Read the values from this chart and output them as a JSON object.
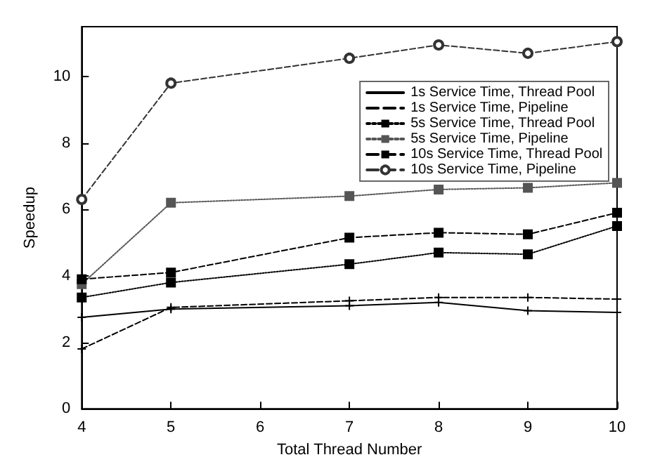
{
  "chart_data": {
    "type": "line",
    "xlabel": "Total Thread Number",
    "ylabel": "Speedup",
    "xlim": [
      4,
      10
    ],
    "xticks": [
      4,
      5,
      6,
      7,
      8,
      9,
      10
    ],
    "ylim": [
      0,
      11.5
    ],
    "yticks": [
      0,
      2,
      4,
      6,
      8,
      10
    ],
    "grid": false,
    "legend": "top right",
    "series": [
      {
        "name": "1s Service Time, Thread Pool",
        "color": "#000000",
        "marker": "cross",
        "line_style": "solid",
        "x": [
          4,
          5,
          7,
          8,
          9,
          10
        ],
        "values": [
          2.75,
          3.0,
          3.1,
          3.2,
          2.95,
          2.9
        ]
      },
      {
        "name": "1s Service Time, Pipeline",
        "color": "#000000",
        "marker": "cross",
        "line_style": "dashed",
        "x": [
          4,
          5,
          7,
          8,
          9,
          10
        ],
        "values": [
          1.8,
          3.05,
          3.25,
          3.35,
          3.35,
          3.3
        ]
      },
      {
        "name": "5s Service Time, Thread Pool",
        "color": "#000000",
        "marker": "square",
        "line_style": "dotted",
        "x": [
          4,
          5,
          7,
          8,
          9,
          10
        ],
        "values": [
          3.35,
          3.8,
          4.35,
          4.7,
          4.65,
          5.5
        ]
      },
      {
        "name": "5s Service Time, Pipeline",
        "color": "#555555",
        "marker": "square",
        "line_style": "dotted",
        "x": [
          4,
          5,
          7,
          8,
          9,
          10
        ],
        "values": [
          3.75,
          6.2,
          6.4,
          6.6,
          6.65,
          6.8
        ]
      },
      {
        "name": "10s Service Time, Thread Pool",
        "color": "#000000",
        "marker": "square",
        "line_style": "dashed",
        "x": [
          4,
          5,
          7,
          8,
          9,
          10
        ],
        "values": [
          3.9,
          4.1,
          5.15,
          5.3,
          5.25,
          5.9
        ]
      },
      {
        "name": "10s Service Time, Pipeline",
        "color": "#333333",
        "marker": "circle",
        "line_style": "dashed",
        "x": [
          4,
          5,
          7,
          8,
          9,
          10
        ],
        "values": [
          6.3,
          9.8,
          10.55,
          10.95,
          10.7,
          11.05
        ]
      }
    ]
  }
}
